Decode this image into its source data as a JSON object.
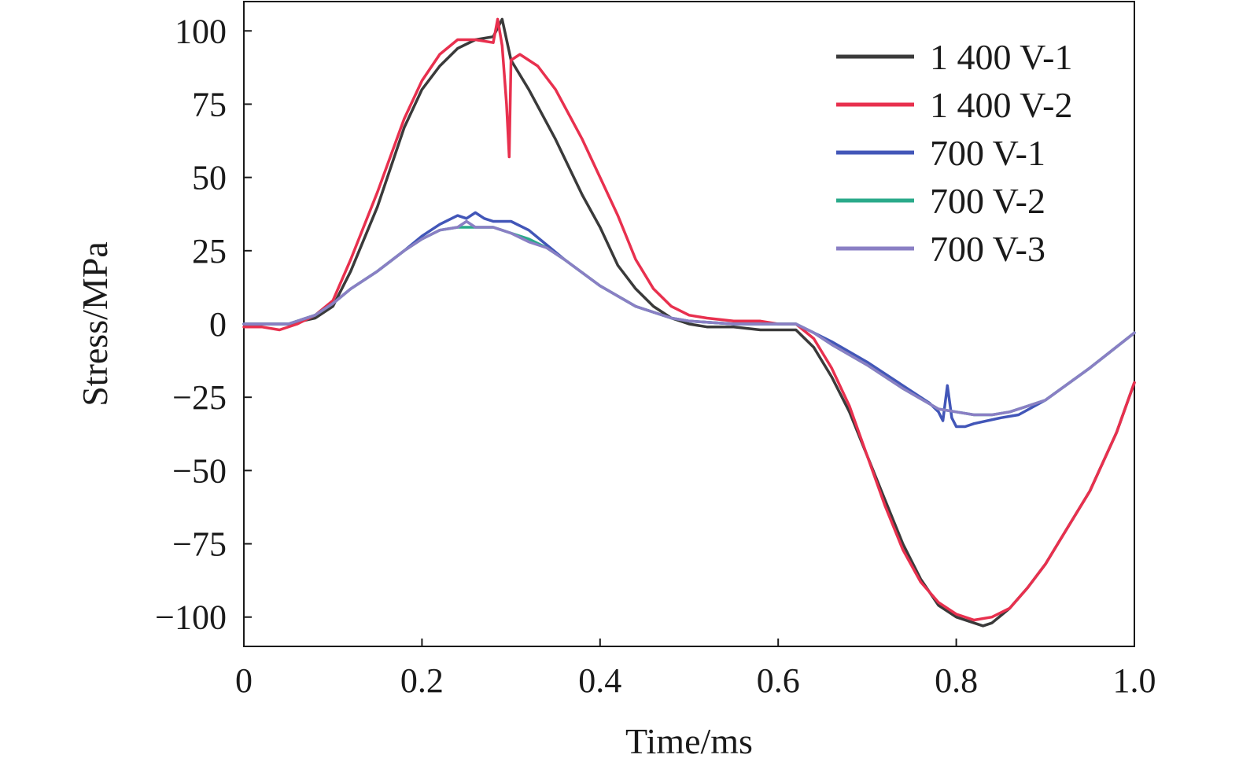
{
  "chart_data": {
    "type": "line",
    "xlabel": "Time/ms",
    "ylabel": "Stress/MPa",
    "xlim": [
      0,
      1.0
    ],
    "ylim": [
      -110,
      110
    ],
    "xticks": [
      0,
      0.2,
      0.4,
      0.6,
      0.8,
      1.0
    ],
    "xtick_labels": [
      "0",
      "0.2",
      "0.4",
      "0.6",
      "0.8",
      "1.0"
    ],
    "yticks": [
      100,
      75,
      50,
      25,
      0,
      -25,
      -50,
      -75,
      -100
    ],
    "ytick_labels": [
      "100",
      "75",
      "50",
      "25",
      "0",
      "−25",
      "−50",
      "−75",
      "−100"
    ],
    "grid": false,
    "legend_position": "top-right",
    "series": [
      {
        "name": "1 400 V-1",
        "color": "#3a3a3a",
        "x": [
          0,
          0.05,
          0.08,
          0.1,
          0.12,
          0.15,
          0.18,
          0.2,
          0.22,
          0.24,
          0.26,
          0.28,
          0.29,
          0.3,
          0.32,
          0.35,
          0.38,
          0.4,
          0.42,
          0.44,
          0.46,
          0.48,
          0.5,
          0.52,
          0.55,
          0.58,
          0.6,
          0.62,
          0.64,
          0.66,
          0.68,
          0.7,
          0.72,
          0.74,
          0.76,
          0.78,
          0.8,
          0.82,
          0.83,
          0.84,
          0.86,
          0.88,
          0.9,
          0.92,
          0.95,
          0.98,
          1.0
        ],
        "y": [
          0,
          0,
          2,
          6,
          18,
          40,
          67,
          80,
          88,
          94,
          97,
          98,
          104,
          90,
          80,
          63,
          44,
          33,
          20,
          12,
          6,
          2,
          0,
          -1,
          -1,
          -2,
          -2,
          -2,
          -8,
          -18,
          -30,
          -45,
          -60,
          -75,
          -87,
          -96,
          -100,
          -102,
          -103,
          -102,
          -97,
          -90,
          -82,
          -72,
          -57,
          -37,
          -20
        ]
      },
      {
        "name": "1 400 V-2",
        "color": "#e8304e",
        "x": [
          0,
          0.02,
          0.04,
          0.06,
          0.08,
          0.1,
          0.12,
          0.15,
          0.18,
          0.2,
          0.22,
          0.24,
          0.26,
          0.28,
          0.285,
          0.29,
          0.295,
          0.298,
          0.3,
          0.31,
          0.33,
          0.35,
          0.38,
          0.4,
          0.42,
          0.44,
          0.46,
          0.48,
          0.5,
          0.52,
          0.55,
          0.58,
          0.6,
          0.62,
          0.64,
          0.66,
          0.68,
          0.7,
          0.72,
          0.74,
          0.76,
          0.78,
          0.8,
          0.82,
          0.84,
          0.86,
          0.88,
          0.9,
          0.92,
          0.95,
          0.98,
          1.0
        ],
        "y": [
          -1,
          -1,
          -2,
          0,
          3,
          8,
          22,
          45,
          70,
          83,
          92,
          97,
          97,
          96,
          104,
          95,
          75,
          57,
          90,
          92,
          88,
          80,
          63,
          50,
          37,
          22,
          12,
          6,
          3,
          2,
          1,
          1,
          0,
          0,
          -5,
          -15,
          -28,
          -45,
          -62,
          -77,
          -88,
          -95,
          -99,
          -101,
          -100,
          -97,
          -90,
          -82,
          -72,
          -57,
          -37,
          -20
        ]
      },
      {
        "name": "700 V-1",
        "color": "#4256b8",
        "x": [
          0,
          0.05,
          0.08,
          0.1,
          0.12,
          0.15,
          0.18,
          0.2,
          0.22,
          0.24,
          0.25,
          0.26,
          0.27,
          0.28,
          0.3,
          0.32,
          0.34,
          0.36,
          0.4,
          0.44,
          0.48,
          0.5,
          0.55,
          0.6,
          0.62,
          0.64,
          0.66,
          0.7,
          0.74,
          0.77,
          0.78,
          0.785,
          0.79,
          0.795,
          0.8,
          0.81,
          0.82,
          0.85,
          0.87,
          0.9,
          0.95,
          1.0
        ],
        "y": [
          0,
          0,
          3,
          7,
          12,
          18,
          25,
          30,
          34,
          37,
          36,
          38,
          36,
          35,
          35,
          32,
          27,
          22,
          13,
          6,
          2,
          1,
          0,
          0,
          0,
          -3,
          -6,
          -13,
          -21,
          -27,
          -30,
          -33,
          -21,
          -32,
          -35,
          -35,
          -34,
          -32,
          -31,
          -26,
          -15,
          -3
        ]
      },
      {
        "name": "700 V-2",
        "color": "#2aaa8a",
        "x": [
          0,
          0.05,
          0.08,
          0.1,
          0.12,
          0.15,
          0.18,
          0.2,
          0.22,
          0.24,
          0.26,
          0.28,
          0.3,
          0.32,
          0.34,
          0.36,
          0.4,
          0.44,
          0.48,
          0.5,
          0.55,
          0.6,
          0.62,
          0.64,
          0.66,
          0.7,
          0.74,
          0.78,
          0.8,
          0.82,
          0.84,
          0.86,
          0.88,
          0.9,
          0.95,
          1.0
        ],
        "y": [
          0,
          0,
          3,
          7,
          12,
          18,
          25,
          29,
          32,
          33,
          33,
          33,
          31,
          29,
          26,
          22,
          13,
          6,
          2,
          1,
          0,
          0,
          0,
          -3,
          -7,
          -14,
          -22,
          -29,
          -30,
          -31,
          -31,
          -30,
          -28,
          -26,
          -15,
          -3
        ]
      },
      {
        "name": "700 V-3",
        "color": "#8a7fc4",
        "x": [
          0,
          0.05,
          0.08,
          0.1,
          0.12,
          0.15,
          0.18,
          0.2,
          0.22,
          0.24,
          0.25,
          0.26,
          0.28,
          0.3,
          0.32,
          0.34,
          0.36,
          0.4,
          0.44,
          0.48,
          0.5,
          0.55,
          0.6,
          0.62,
          0.64,
          0.66,
          0.7,
          0.74,
          0.78,
          0.8,
          0.82,
          0.84,
          0.86,
          0.88,
          0.9,
          0.95,
          1.0
        ],
        "y": [
          0,
          0,
          3,
          7,
          12,
          18,
          25,
          29,
          32,
          33,
          35,
          33,
          33,
          31,
          28,
          26,
          22,
          13,
          6,
          2,
          1,
          0,
          0,
          0,
          -3,
          -7,
          -14,
          -22,
          -29,
          -30,
          -31,
          -31,
          -30,
          -28,
          -26,
          -15,
          -3
        ]
      }
    ]
  }
}
